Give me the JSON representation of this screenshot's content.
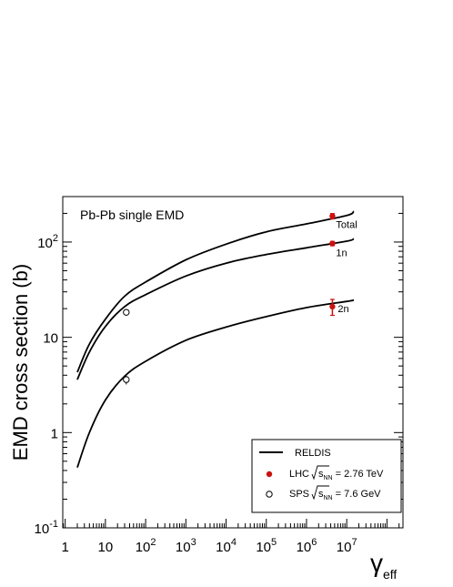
{
  "chart_data": {
    "type": "line",
    "annotation": "Pb-Pb  single EMD",
    "ylabel": "EMD cross section (b)",
    "xlabel": {
      "base": "γ",
      "sub": "eff"
    },
    "xscale": "log",
    "yscale": "log",
    "xlim": [
      0.87,
      250000000.0
    ],
    "ylim": [
      0.1,
      300
    ],
    "x_ticks": [
      {
        "value": 1,
        "base": "1",
        "exp": ""
      },
      {
        "value": 10,
        "base": "10",
        "exp": ""
      },
      {
        "value": 100,
        "base": "10",
        "exp": "2"
      },
      {
        "value": 1000,
        "base": "10",
        "exp": "3"
      },
      {
        "value": 10000,
        "base": "10",
        "exp": "4"
      },
      {
        "value": 100000,
        "base": "10",
        "exp": "5"
      },
      {
        "value": 1000000,
        "base": "10",
        "exp": "6"
      },
      {
        "value": 10000000,
        "base": "10",
        "exp": "7"
      }
    ],
    "y_ticks": [
      {
        "value": 0.1,
        "base": "10",
        "exp": "-1"
      },
      {
        "value": 1,
        "base": "1",
        "exp": ""
      },
      {
        "value": 10,
        "base": "10",
        "exp": ""
      },
      {
        "value": 100,
        "base": "10",
        "exp": "2"
      }
    ],
    "series": [
      {
        "label": "Total",
        "x": [
          2,
          4,
          10,
          30,
          100,
          1000,
          10000,
          100000,
          1000000,
          10000000,
          15000000
        ],
        "y": [
          4.3,
          8.5,
          15.5,
          27,
          38,
          65,
          95,
          128,
          155,
          190,
          210
        ]
      },
      {
        "label": "1n",
        "x": [
          2,
          4,
          10,
          30,
          100,
          1000,
          10000,
          100000,
          1000000,
          10000000,
          15000000
        ],
        "y": [
          3.6,
          7.0,
          13,
          21,
          28,
          44,
          60,
          74,
          87,
          102,
          108
        ]
      },
      {
        "label": "2n",
        "x": [
          2,
          4,
          10,
          30,
          100,
          1000,
          10000,
          100000,
          1000000,
          10000000,
          15000000
        ],
        "y": [
          0.43,
          1.0,
          2.2,
          3.9,
          5.6,
          9.3,
          12.8,
          16.5,
          20.5,
          23.8,
          24.6
        ]
      }
    ],
    "points": {
      "LHC": [
        {
          "x": 4400000,
          "y": 187,
          "err_lo": 12,
          "err_hi": 12
        },
        {
          "x": 4400000,
          "y": 96.5,
          "err_lo": 5,
          "err_hi": 5
        },
        {
          "x": 4400000,
          "y": 21,
          "err_lo": 4,
          "err_hi": 4
        }
      ],
      "SPS": [
        {
          "x": 33,
          "y": 18.3,
          "err_lo": 1.5,
          "err_hi": 1.5
        },
        {
          "x": 33,
          "y": 3.6,
          "err_lo": 0.4,
          "err_hi": 0.4
        }
      ]
    },
    "legend": {
      "position": "bottom-right",
      "entries": [
        {
          "marker": "line",
          "label": "RELDIS"
        },
        {
          "marker": "filled-circle",
          "color": "#cc1111",
          "prefix": "LHC",
          "sqrt_base": "s",
          "sqrt_sub": "NN",
          "value": " = 2.76 TeV"
        },
        {
          "marker": "open-circle",
          "color": "#000000",
          "prefix": "SPS",
          "sqrt_base": "s",
          "sqrt_sub": "NN",
          "value": " = 7.6 GeV"
        }
      ]
    },
    "colors": {
      "lhc": "#cc1111",
      "sps": "#000000",
      "curve": "#000000"
    }
  }
}
